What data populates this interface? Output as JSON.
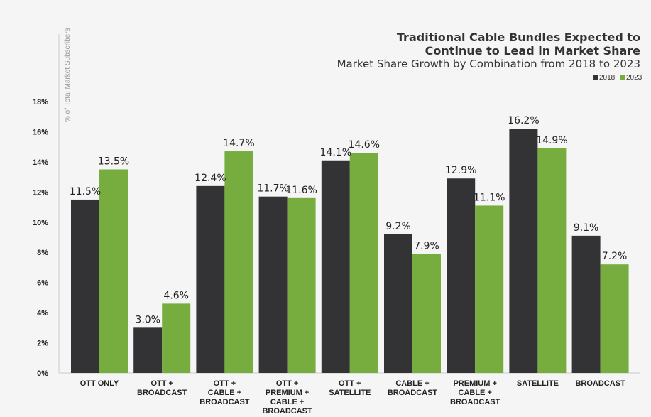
{
  "chart_data": {
    "type": "bar",
    "title_lines": [
      "Traditional Cable Bundles Expected to",
      "Continue to Lead in Market Share"
    ],
    "subtitle": "Market Share Growth by Combination from 2018 to 2023",
    "ylabel": "% of Total Market Subscribers",
    "ylim": [
      0,
      18
    ],
    "yticks": [
      "0%",
      "2%",
      "4%",
      "6%",
      "8%",
      "10%",
      "12%",
      "14%",
      "16%",
      "18%"
    ],
    "legend_position": "top-right",
    "categories": [
      [
        "OTT ONLY"
      ],
      [
        "OTT +",
        "BROADCAST"
      ],
      [
        "OTT +",
        "CABLE +",
        "BROADCAST"
      ],
      [
        "OTT +",
        "PREMIUM +",
        "CABLE +",
        "BROADCAST"
      ],
      [
        "OTT +",
        "SATELLITE"
      ],
      [
        "CABLE +",
        "BROADCAST"
      ],
      [
        "PREMIUM +",
        "CABLE +",
        "BROADCAST"
      ],
      [
        "SATELLITE"
      ],
      [
        "BROADCAST"
      ]
    ],
    "series": [
      {
        "name": "2018",
        "color": "#333336",
        "values": [
          11.5,
          3.0,
          12.4,
          11.7,
          14.1,
          9.2,
          12.9,
          16.2,
          9.1
        ],
        "labels": [
          "11.5%",
          "3.0%",
          "12.4%",
          "11.7%",
          "14.1%",
          "9.2%",
          "12.9%",
          "16.2%",
          "9.1%"
        ]
      },
      {
        "name": "2023",
        "color": "#77ad3f",
        "values": [
          13.5,
          4.6,
          14.7,
          11.6,
          14.6,
          7.9,
          11.1,
          14.9,
          7.2
        ],
        "labels": [
          "13.5%",
          "4.6%",
          "14.7%",
          "11.6%",
          "14.6%",
          "7.9%",
          "11.1%",
          "14.9%",
          "7.2%"
        ]
      }
    ]
  }
}
